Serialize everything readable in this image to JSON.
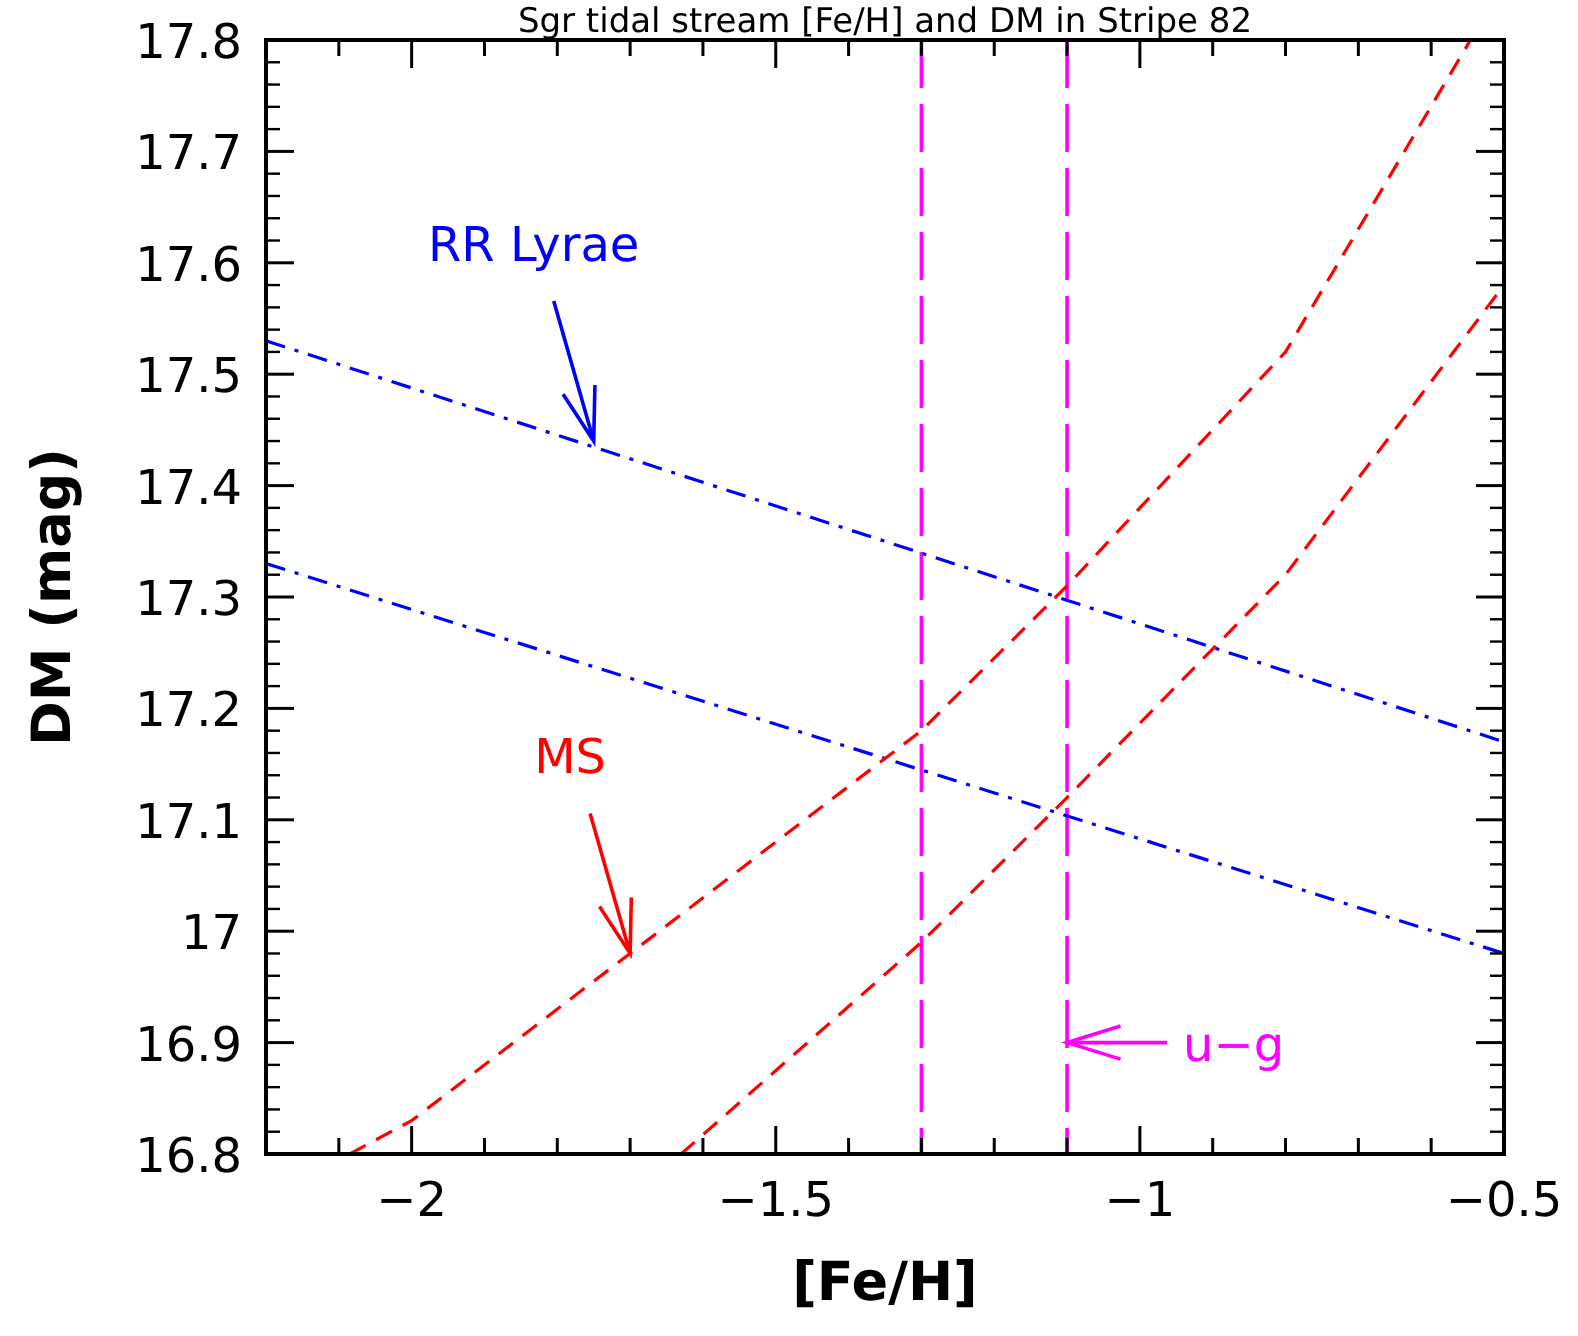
{
  "chart_data": {
    "type": "line",
    "title": "Sgr tidal stream [Fe/H] and DM in Stripe 82",
    "xlabel": "[Fe/H]",
    "ylabel": "DM (mag)",
    "xlim": [
      -2.2,
      -0.5
    ],
    "ylim": [
      16.8,
      17.8
    ],
    "xticks": [
      {
        "value": -2.1,
        "label": null
      },
      -2,
      {
        "value": -1.9,
        "label": null
      },
      {
        "value": -1.8,
        "label": null
      },
      {
        "value": -1.7,
        "label": null
      },
      {
        "value": -1.6,
        "label": null
      },
      -1.5,
      {
        "value": -1.4,
        "label": null
      },
      {
        "value": -1.3,
        "label": null
      },
      {
        "value": -1.2,
        "label": null
      },
      {
        "value": -1.1,
        "label": null
      },
      -1,
      {
        "value": -0.9,
        "label": null
      },
      {
        "value": -0.8,
        "label": null
      },
      {
        "value": -0.7,
        "label": null
      },
      {
        "value": -0.6,
        "label": null
      },
      -0.5
    ],
    "yticks": [
      16.8,
      16.9,
      {
        "value": 17.0,
        "label": "17"
      },
      17.1,
      17.2,
      17.3,
      17.4,
      17.5,
      17.6,
      17.7,
      17.8
    ],
    "grid": false,
    "marker": "none",
    "series": [
      {
        "color": "#0000ff",
        "line_style": "dashdot",
        "x": [
          -2.2,
          -0.5
        ],
        "values": [
          17.53,
          17.17
        ]
      },
      {
        "color": "#0000ff",
        "line_style": "dashdot",
        "x": [
          -2.2,
          -0.5
        ],
        "values": [
          17.33,
          16.98
        ]
      },
      {
        "color": "#ff0000",
        "line_style": "dashed",
        "x": [
          -2.085,
          -2.0,
          -1.7,
          -1.3,
          -1.1,
          -0.8,
          -0.546
        ],
        "values": [
          16.8,
          16.83,
          16.98,
          17.18,
          17.31,
          17.52,
          17.8
        ]
      },
      {
        "color": "#ff0000",
        "line_style": "dashed",
        "x": [
          -1.63,
          -1.3,
          -1.1,
          -0.8,
          -0.5
        ],
        "values": [
          16.8,
          16.99,
          17.12,
          17.32,
          17.58
        ]
      }
    ],
    "ref_lines": [
      {
        "axis": "x",
        "value": -1.3,
        "color": "#ff00ff",
        "line_style": "dashed"
      },
      {
        "axis": "x",
        "value": -1.1,
        "color": "#ff00ff",
        "line_style": "dashed"
      }
    ],
    "annotations": [
      {
        "text": "RR Lyrae",
        "x": -1.75,
        "y": 17.44
      },
      {
        "text": "MS",
        "x": -1.7,
        "y": 16.98
      },
      {
        "text": "u−g",
        "x": -1.1,
        "y": 16.9
      }
    ]
  }
}
